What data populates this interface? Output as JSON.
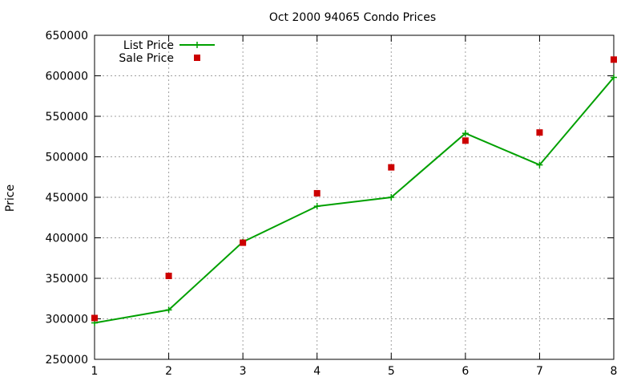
{
  "chart_data": {
    "type": "line",
    "title": "Oct 2000 94065 Condo Prices",
    "xlabel": "",
    "ylabel": "Price",
    "xlim": [
      1,
      8
    ],
    "ylim": [
      250000,
      650000
    ],
    "x_ticks": [
      1,
      2,
      3,
      4,
      5,
      6,
      7,
      8
    ],
    "y_ticks": [
      250000,
      300000,
      350000,
      400000,
      450000,
      500000,
      550000,
      600000,
      650000
    ],
    "grid": true,
    "legend_position": "top-left",
    "x": [
      1,
      2,
      3,
      4,
      5,
      6,
      7,
      8
    ],
    "series": [
      {
        "name": "List Price",
        "style": "linespoints",
        "marker": "plus",
        "color": "#00a000",
        "values": [
          295000,
          311000,
          395000,
          439000,
          450000,
          529000,
          490000,
          598000
        ]
      },
      {
        "name": "Sale Price",
        "style": "points",
        "marker": "square",
        "color": "#cc0000",
        "values": [
          301000,
          353000,
          394000,
          455000,
          487000,
          520000,
          530000,
          620000
        ]
      }
    ]
  }
}
